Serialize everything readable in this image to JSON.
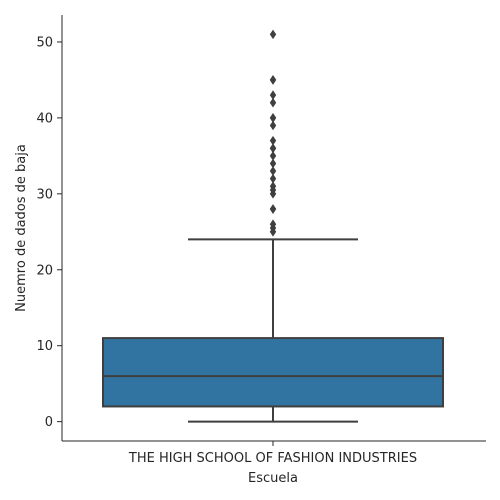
{
  "chart_data": {
    "type": "box",
    "title": "",
    "xlabel": "Escuela",
    "ylabel": "Nuemro de dados de baja",
    "categories": [
      "THE HIGH SCHOOL OF FASHION INDUSTRIES"
    ],
    "ylim": [
      -2.55,
      53.55
    ],
    "yticks": [
      0,
      10,
      20,
      30,
      40,
      50
    ],
    "grid": false,
    "legend": "none",
    "box": {
      "min": 0,
      "q1": 2,
      "median": 6,
      "q3": 11,
      "max": 24
    },
    "outliers": [
      25,
      25.5,
      26,
      28,
      28,
      30,
      30.5,
      31,
      32,
      33,
      34,
      35,
      36,
      36,
      37,
      39,
      40,
      40,
      42,
      43,
      45,
      45,
      51
    ],
    "colors": {
      "box_fill": "#3274a1",
      "line": "#3f3f3f",
      "axis": "#262626"
    }
  }
}
